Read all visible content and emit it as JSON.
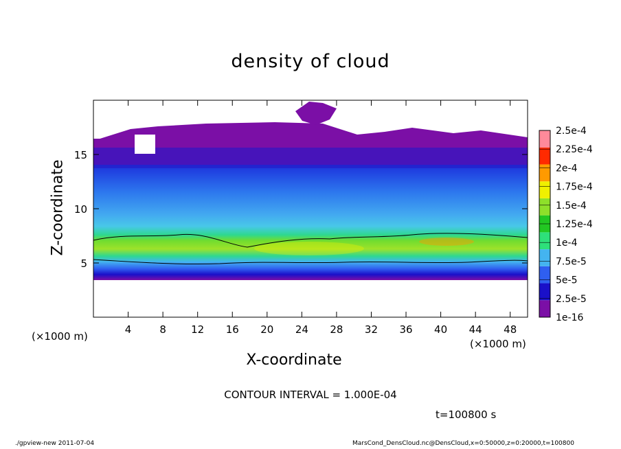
{
  "chart_data": {
    "type": "heatmap",
    "title": "density of cloud",
    "xlabel": "X-coordinate",
    "ylabel": "Z-coordinate",
    "x_unit_label": "(×1000 m)",
    "x_unit_label_right": "(×1000 m)",
    "xlim": [
      0,
      50
    ],
    "ylim": [
      0,
      20
    ],
    "xticks": [
      4,
      8,
      12,
      16,
      20,
      24,
      28,
      32,
      36,
      40,
      44,
      48
    ],
    "yticks": [
      5,
      10,
      15
    ],
    "colorbar": {
      "labels": [
        "1e-16",
        "2.5e-5",
        "5e-5",
        "7.5e-5",
        "1e-4",
        "1.25e-4",
        "1.5e-4",
        "1.75e-4",
        "2e-4",
        "2.25e-4",
        "2.5e-4"
      ],
      "colors": [
        "#7b0fa6",
        "#1a10c9",
        "#2f5ff0",
        "#44b4f0",
        "#2ee07a",
        "#22c722",
        "#8ee02a",
        "#f0f000",
        "#ff9a00",
        "#ff2a00",
        "#ff8a9a"
      ]
    },
    "vertical_profile": [
      {
        "z": 3.7,
        "density": 5e-05
      },
      {
        "z": 4.5,
        "density": 6e-05
      },
      {
        "z": 5.5,
        "density": 0.00011
      },
      {
        "z": 6.5,
        "density": 0.00013
      },
      {
        "z": 7.5,
        "density": 9e-05
      },
      {
        "z": 10,
        "density": 6e-05
      },
      {
        "z": 13,
        "density": 3e-05
      },
      {
        "z": 15.5,
        "density": 1e-05
      },
      {
        "z": 16.5,
        "density": 1e-07
      }
    ],
    "grid": false,
    "legend": "right"
  },
  "texts": {
    "title": "density of cloud",
    "xlabel": "X-coordinate",
    "ylabel": "Z-coordinate",
    "x_unit_left": "(×1000 m)",
    "x_unit_right": "(×1000 m)",
    "contour_interval": "CONTOUR INTERVAL = 1.000E-04",
    "time": "t=100800 s",
    "footer_left": "./gpview-new   2011-07-04",
    "footer_right": "MarsCond_DensCloud.nc@DensCloud,x=0:50000,z=0:20000,t=100800"
  }
}
